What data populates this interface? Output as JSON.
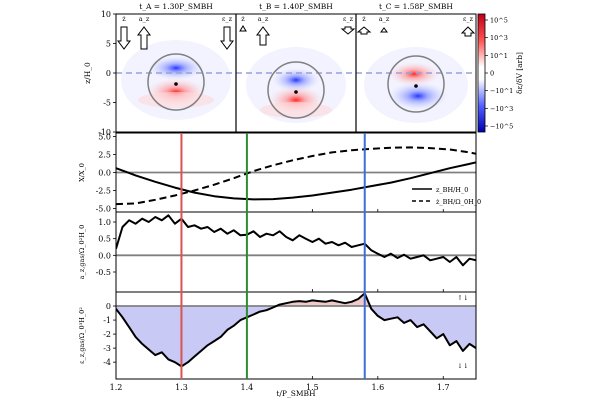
{
  "figure": {
    "time_titles": [
      {
        "text": "t_A = 1.30P_SMBH",
        "color": "#d9534f"
      },
      {
        "text": "t_B = 1.40P_SMBH",
        "color": "#2e8b2e"
      },
      {
        "text": "t_C = 1.58P_SMBH",
        "color": "#3a6fd8"
      }
    ],
    "snap_labels": {
      "z_dot": "ż",
      "a_z": "a_z",
      "eps_z": "ε_z"
    },
    "colorbar": {
      "label": "δε/δV [arb]",
      "ticks": [
        "10^5",
        "10^3",
        "10^1",
        "0",
        "−10^1",
        "−10^3",
        "−10^5"
      ],
      "colors": {
        "pos": "#e8202a",
        "neg": "#2130d8",
        "mid": "#ffffff"
      }
    },
    "panel_colors": {
      "line": "#000000",
      "zero_line": "#808080",
      "fill_pos": "#f2c9c9",
      "fill_neg": "#c9c9f5",
      "vline_A": "#d9534f",
      "vline_B": "#2e8b2e",
      "vline_C": "#3a6fd8"
    },
    "arrow_labels": {
      "up": "↑ i",
      "down": "↓ i"
    },
    "xlabel": "t/P_SMBH"
  },
  "chart_data": [
    {
      "type": "heatmap",
      "id": "snapshots",
      "ylabel": "z/H_0",
      "ylim": [
        -10,
        10
      ],
      "yticks": [
        10,
        5,
        0,
        -5,
        -10
      ],
      "snapshots": [
        {
          "label": "t_A",
          "time": 1.3,
          "bh_z": -2.0,
          "arrows": {
            "z_dot": "down",
            "a_z": "up",
            "eps_z": "down"
          }
        },
        {
          "label": "t_B",
          "time": 1.4,
          "bh_z": -3.5,
          "arrows": {
            "z_dot": "down",
            "a_z": "up",
            "eps_z": "down"
          }
        },
        {
          "label": "t_C",
          "time": 1.58,
          "bh_z": -2.3,
          "arrows": {
            "z_dot": "up",
            "a_z": "up",
            "eps_z": "up"
          }
        }
      ]
    },
    {
      "type": "line",
      "id": "position",
      "ylabel": "X/X_0",
      "xlim": [
        1.2,
        1.75
      ],
      "ylim": [
        -5.5,
        5.5
      ],
      "yticks": [
        5.0,
        2.5,
        0.0,
        -2.5,
        -5.0
      ],
      "legend": "center-right",
      "series": [
        {
          "name": "z_BH/H_0",
          "style": "solid",
          "x": [
            1.2,
            1.23,
            1.26,
            1.29,
            1.32,
            1.35,
            1.38,
            1.41,
            1.44,
            1.47,
            1.5,
            1.53,
            1.56,
            1.59,
            1.62,
            1.65,
            1.68,
            1.71,
            1.74,
            1.75
          ],
          "y": [
            0.6,
            -0.4,
            -1.3,
            -2.1,
            -2.8,
            -3.3,
            -3.6,
            -3.75,
            -3.7,
            -3.5,
            -3.2,
            -2.8,
            -2.4,
            -1.9,
            -1.4,
            -0.8,
            -0.1,
            0.6,
            1.2,
            1.4
          ]
        },
        {
          "name": "ż_BH/Ω_0H_0",
          "style": "dashed",
          "x": [
            1.2,
            1.23,
            1.26,
            1.29,
            1.32,
            1.35,
            1.38,
            1.41,
            1.44,
            1.47,
            1.5,
            1.53,
            1.56,
            1.59,
            1.62,
            1.65,
            1.68,
            1.71,
            1.74,
            1.75
          ],
          "y": [
            -4.4,
            -4.3,
            -3.8,
            -3.2,
            -2.5,
            -1.7,
            -0.8,
            0.2,
            1.0,
            1.7,
            2.3,
            2.8,
            3.1,
            3.3,
            3.45,
            3.5,
            3.4,
            3.2,
            2.8,
            2.6
          ]
        }
      ]
    },
    {
      "type": "line",
      "id": "acceleration",
      "ylabel": "a_z,gas/Ω_0²H_0",
      "xlim": [
        1.2,
        1.75
      ],
      "ylim": [
        -1.1,
        1.3
      ],
      "yticks": [
        1.0,
        0.5,
        0.0,
        -0.5
      ],
      "series": [
        {
          "name": "a_z,gas",
          "x": [
            1.2,
            1.21,
            1.22,
            1.23,
            1.24,
            1.25,
            1.26,
            1.27,
            1.28,
            1.29,
            1.3,
            1.31,
            1.32,
            1.33,
            1.34,
            1.35,
            1.36,
            1.37,
            1.38,
            1.39,
            1.4,
            1.41,
            1.42,
            1.43,
            1.44,
            1.45,
            1.46,
            1.47,
            1.48,
            1.49,
            1.5,
            1.51,
            1.52,
            1.53,
            1.54,
            1.55,
            1.56,
            1.57,
            1.58,
            1.59,
            1.6,
            1.61,
            1.62,
            1.63,
            1.64,
            1.65,
            1.66,
            1.67,
            1.68,
            1.69,
            1.7,
            1.71,
            1.72,
            1.73,
            1.74,
            1.75
          ],
          "y": [
            0.2,
            0.85,
            1.05,
            0.95,
            1.1,
            1.0,
            1.15,
            1.05,
            1.2,
            0.95,
            1.1,
            0.85,
            0.9,
            0.8,
            0.85,
            0.7,
            0.8,
            0.65,
            0.75,
            0.6,
            0.62,
            0.72,
            0.55,
            0.65,
            0.6,
            0.72,
            0.55,
            0.45,
            0.6,
            0.5,
            0.4,
            0.5,
            0.35,
            0.4,
            0.3,
            0.38,
            0.25,
            0.3,
            0.35,
            0.15,
            0.05,
            -0.05,
            0.05,
            -0.08,
            0.02,
            -0.1,
            -0.05,
            0.0,
            -0.15,
            -0.1,
            -0.05,
            -0.2,
            -0.05,
            -0.3,
            -0.1,
            -0.15
          ]
        }
      ]
    },
    {
      "type": "area",
      "id": "energy",
      "ylabel": "ε_z,gas/Ω_0³H_0²",
      "xlim": [
        1.2,
        1.75
      ],
      "xticks": [
        1.2,
        1.3,
        1.4,
        1.5,
        1.6,
        1.7
      ],
      "ylim": [
        -5.2,
        1.0
      ],
      "yticks": [
        0,
        -1,
        -2,
        -3,
        -4
      ],
      "series": [
        {
          "name": "ε_z,gas",
          "x": [
            1.2,
            1.21,
            1.22,
            1.23,
            1.24,
            1.25,
            1.26,
            1.27,
            1.28,
            1.29,
            1.3,
            1.31,
            1.32,
            1.33,
            1.34,
            1.35,
            1.36,
            1.37,
            1.38,
            1.39,
            1.4,
            1.41,
            1.42,
            1.43,
            1.44,
            1.45,
            1.46,
            1.47,
            1.48,
            1.49,
            1.5,
            1.51,
            1.52,
            1.53,
            1.54,
            1.55,
            1.56,
            1.57,
            1.58,
            1.59,
            1.6,
            1.61,
            1.62,
            1.63,
            1.64,
            1.65,
            1.66,
            1.67,
            1.68,
            1.69,
            1.7,
            1.71,
            1.72,
            1.73,
            1.74,
            1.75
          ],
          "y": [
            -0.2,
            -0.8,
            -1.5,
            -2.2,
            -2.7,
            -3.1,
            -3.5,
            -3.3,
            -3.8,
            -4.0,
            -4.3,
            -4.0,
            -3.6,
            -3.2,
            -2.8,
            -2.5,
            -2.2,
            -1.7,
            -1.4,
            -1.0,
            -0.8,
            -0.6,
            -0.4,
            -0.3,
            -0.1,
            0.1,
            0.2,
            0.3,
            0.35,
            0.3,
            0.4,
            0.35,
            0.3,
            0.4,
            0.3,
            0.2,
            0.3,
            0.5,
            0.9,
            -0.2,
            -0.7,
            -1.0,
            -0.9,
            -0.8,
            -1.2,
            -1.0,
            -1.5,
            -1.3,
            -1.8,
            -2.3,
            -2.0,
            -2.8,
            -2.5,
            -3.2,
            -2.7,
            -3.0
          ]
        }
      ]
    }
  ]
}
